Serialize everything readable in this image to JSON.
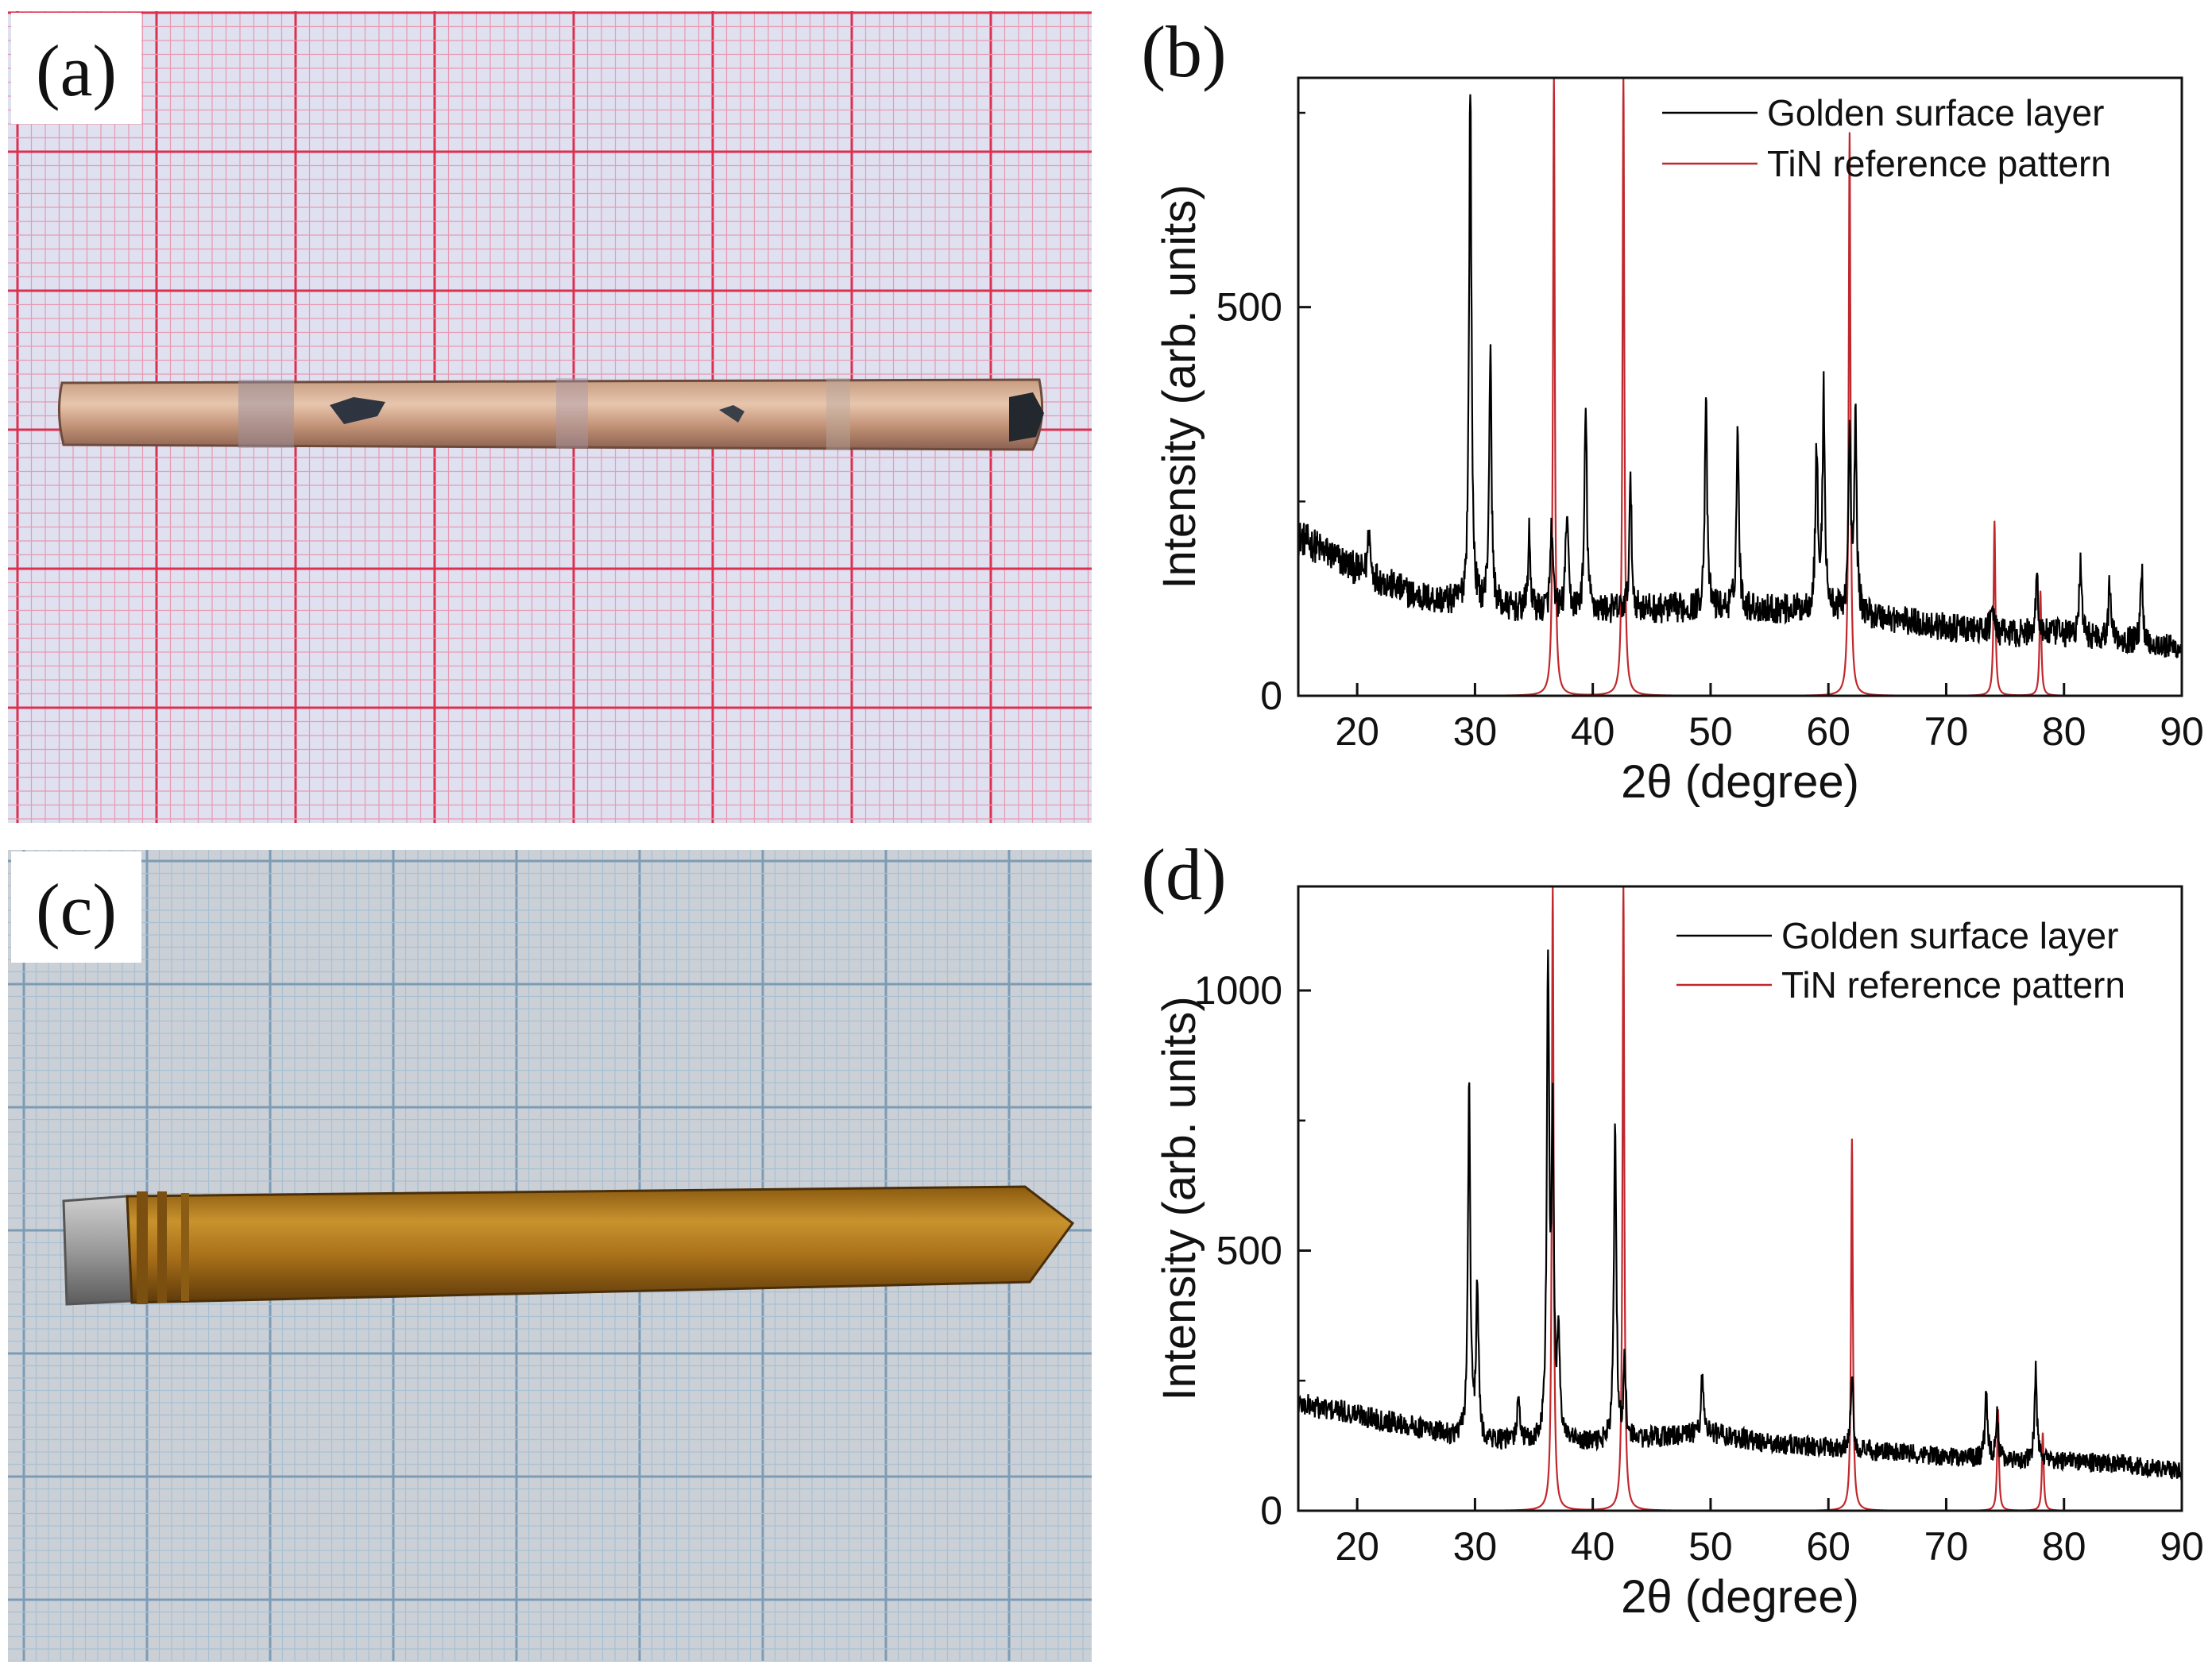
{
  "panels": {
    "a": {
      "label": "(a)"
    },
    "b": {
      "label": "(b)"
    },
    "c": {
      "label": "(c)"
    },
    "d": {
      "label": "(d)"
    }
  },
  "colors": {
    "measured": "#000000",
    "reference": "#c0282d",
    "grid_a_minor": "#e79ab0",
    "grid_a_major": "#dd3050",
    "paper_a": "#dfe0f0",
    "grid_c_minor": "#a8c0d2",
    "grid_c_major": "#7c9cb6",
    "paper_c": "#cbd0d6"
  },
  "chart_data": [
    {
      "panel": "b",
      "type": "line",
      "xlabel": "2θ (degree)",
      "ylabel": "Intensity (arb. units)",
      "xlim": [
        15,
        90
      ],
      "ylim": [
        0,
        795
      ],
      "xticks": [
        "20",
        "30",
        "40",
        "50",
        "60",
        "70",
        "80",
        "90"
      ],
      "xtick_values": [
        20,
        30,
        40,
        50,
        60,
        70,
        80,
        90
      ],
      "yticks": [
        "0",
        "500"
      ],
      "ytick_values": [
        0,
        500
      ],
      "legend_position": "top-right",
      "series": [
        {
          "name": "Golden surface layer",
          "color": "#000000",
          "background": [
            [
              15,
              205
            ],
            [
              20,
              162
            ],
            [
              25,
              128
            ],
            [
              30,
              115
            ],
            [
              35,
              110
            ],
            [
              40,
              110
            ],
            [
              50,
              113
            ],
            [
              60,
              110
            ],
            [
              65,
              100
            ],
            [
              70,
              88
            ],
            [
              75,
              80
            ],
            [
              80,
              80
            ],
            [
              85,
              72
            ],
            [
              90,
              60
            ]
          ],
          "peaks": [
            {
              "x": 21.0,
              "y": 215
            },
            {
              "x": 29.6,
              "y": 795
            },
            {
              "x": 31.3,
              "y": 445
            },
            {
              "x": 34.6,
              "y": 205
            },
            {
              "x": 36.5,
              "y": 215
            },
            {
              "x": 37.8,
              "y": 240
            },
            {
              "x": 39.4,
              "y": 370
            },
            {
              "x": 43.2,
              "y": 270
            },
            {
              "x": 49.6,
              "y": 380
            },
            {
              "x": 52.3,
              "y": 345
            },
            {
              "x": 59.0,
              "y": 320
            },
            {
              "x": 59.6,
              "y": 385
            },
            {
              "x": 61.8,
              "y": 330
            },
            {
              "x": 62.3,
              "y": 350
            },
            {
              "x": 73.9,
              "y": 125
            },
            {
              "x": 77.7,
              "y": 155
            },
            {
              "x": 81.4,
              "y": 170
            },
            {
              "x": 83.9,
              "y": 150
            },
            {
              "x": 86.6,
              "y": 160
            }
          ]
        },
        {
          "name": "TiN reference pattern",
          "color": "#c0282d",
          "sticks": [
            {
              "x": 36.7,
              "y": 795
            },
            {
              "x": 42.6,
              "y": 795
            },
            {
              "x": 61.8,
              "y": 725
            },
            {
              "x": 74.1,
              "y": 225
            },
            {
              "x": 78.0,
              "y": 135
            }
          ]
        }
      ]
    },
    {
      "panel": "d",
      "type": "line",
      "xlabel": "2θ (degree)",
      "ylabel": "Intensity (arb. units)",
      "xlim": [
        15,
        90
      ],
      "ylim": [
        0,
        1200
      ],
      "xticks": [
        "20",
        "30",
        "40",
        "50",
        "60",
        "70",
        "80",
        "90"
      ],
      "xtick_values": [
        20,
        30,
        40,
        50,
        60,
        70,
        80,
        90
      ],
      "yticks": [
        "0",
        "500",
        "1000"
      ],
      "ytick_values": [
        0,
        500,
        1000
      ],
      "legend_position": "top-right",
      "series": [
        {
          "name": "Golden surface layer",
          "color": "#000000",
          "background": [
            [
              15,
              205
            ],
            [
              20,
              185
            ],
            [
              25,
              160
            ],
            [
              30,
              135
            ],
            [
              35,
              130
            ],
            [
              40,
              130
            ],
            [
              45,
              140
            ],
            [
              50,
              150
            ],
            [
              55,
              128
            ],
            [
              60,
              122
            ],
            [
              65,
              112
            ],
            [
              70,
              105
            ],
            [
              75,
              98
            ],
            [
              80,
              95
            ],
            [
              85,
              90
            ],
            [
              90,
              75
            ]
          ],
          "peaks": [
            {
              "x": 29.5,
              "y": 810
            },
            {
              "x": 30.2,
              "y": 430
            },
            {
              "x": 33.7,
              "y": 230
            },
            {
              "x": 36.2,
              "y": 1045
            },
            {
              "x": 36.6,
              "y": 700
            },
            {
              "x": 37.1,
              "y": 340
            },
            {
              "x": 41.9,
              "y": 755
            },
            {
              "x": 42.7,
              "y": 280
            },
            {
              "x": 49.3,
              "y": 270
            },
            {
              "x": 62.0,
              "y": 270
            },
            {
              "x": 73.4,
              "y": 225
            },
            {
              "x": 74.3,
              "y": 190
            },
            {
              "x": 77.6,
              "y": 270
            }
          ]
        },
        {
          "name": "TiN reference pattern",
          "color": "#c0282d",
          "sticks": [
            {
              "x": 36.6,
              "y": 1200
            },
            {
              "x": 42.6,
              "y": 1200
            },
            {
              "x": 62.0,
              "y": 715
            },
            {
              "x": 74.4,
              "y": 195
            },
            {
              "x": 78.2,
              "y": 150
            }
          ]
        }
      ]
    }
  ]
}
